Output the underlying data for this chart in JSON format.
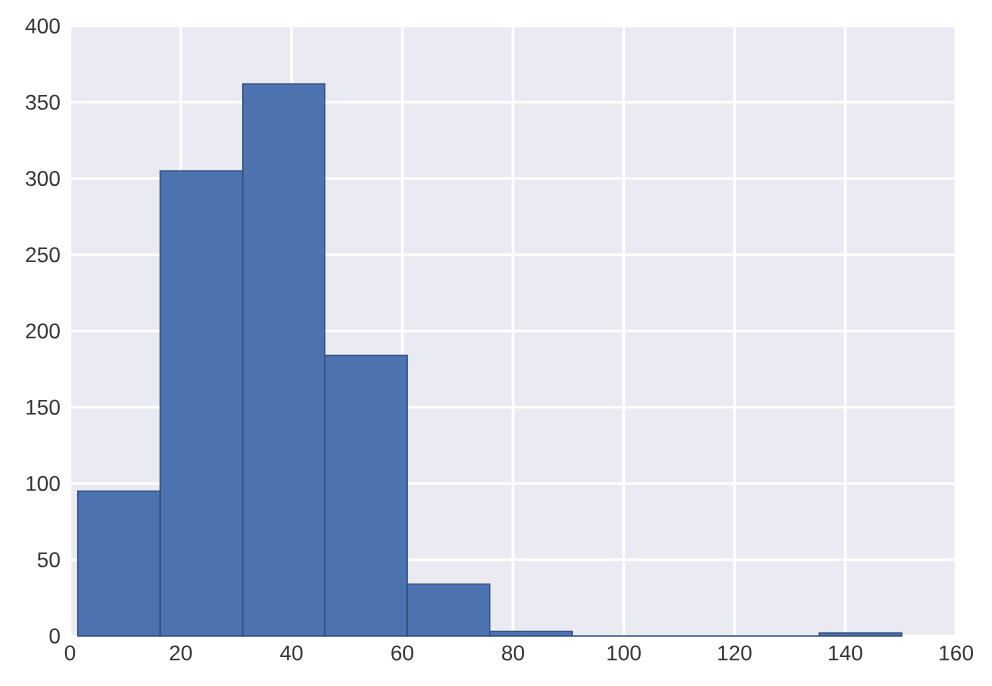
{
  "chart_data": {
    "type": "histogram",
    "bins": [
      1.4,
      16.3,
      31.2,
      46.0,
      60.9,
      75.8,
      90.7,
      135.3,
      150.2
    ],
    "values": [
      95,
      305,
      362,
      184,
      34,
      3,
      0,
      2
    ],
    "color": "#4c72b0",
    "xlim": [
      0,
      160
    ],
    "xticks": [
      0,
      20,
      40,
      60,
      80,
      100,
      120,
      140,
      160
    ],
    "ylim": [
      0,
      400
    ],
    "yticks": [
      0,
      50,
      100,
      150,
      200,
      250,
      300,
      350,
      400
    ],
    "grid": true
  }
}
